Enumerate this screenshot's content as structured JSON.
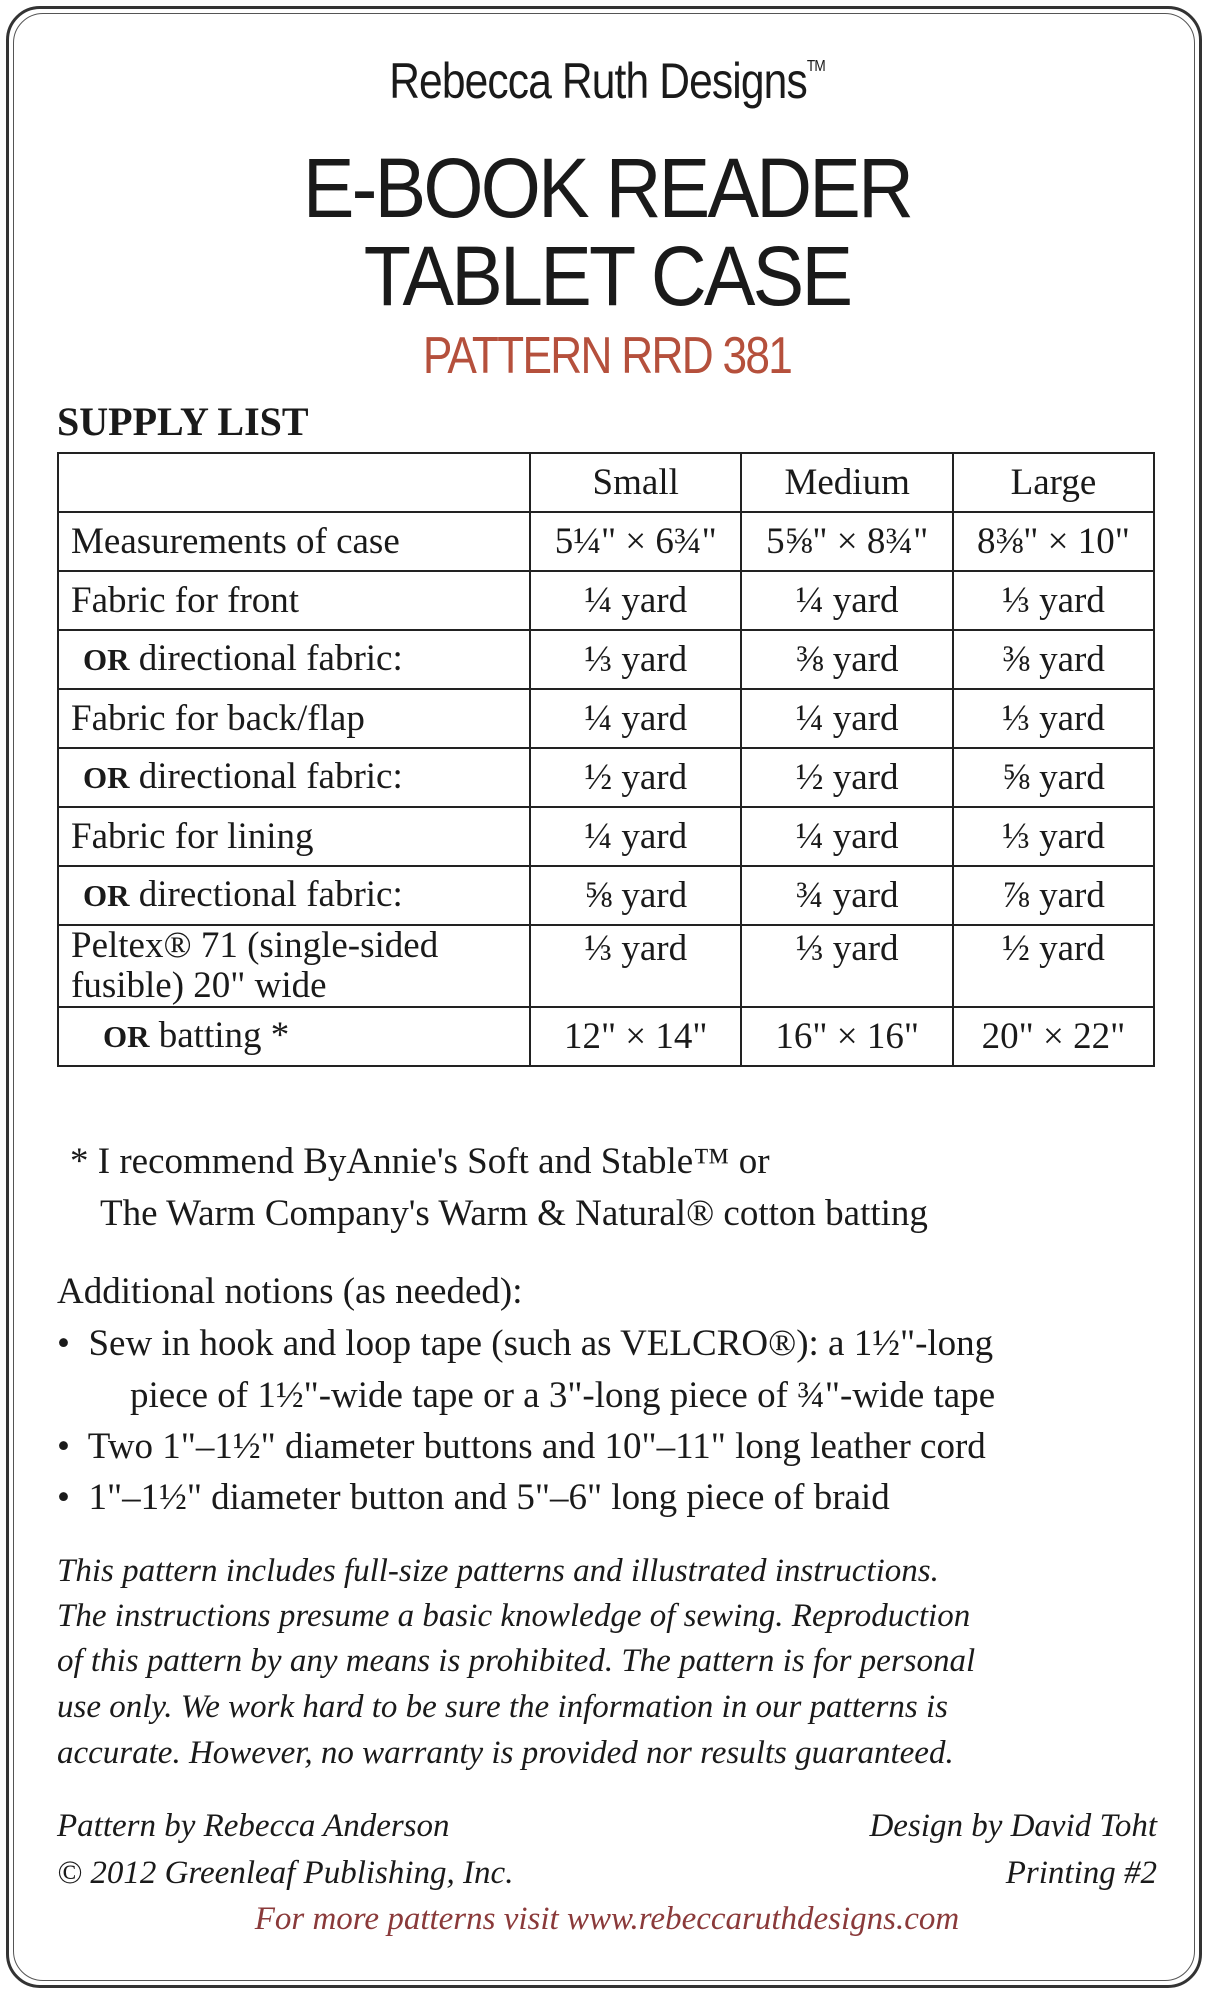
{
  "brand": {
    "name": "Rebecca Ruth Designs",
    "tm": "TM"
  },
  "title": {
    "line1": "E-BOOK READER",
    "line2": "TABLET CASE",
    "pattern": "PATTERN RRD 381"
  },
  "supply": {
    "heading": "SUPPLY LIST",
    "columns": [
      "",
      "Small",
      "Medium",
      "Large"
    ],
    "rows": [
      {
        "or": "",
        "label": "Measurements of case",
        "values": [
          "5¼\" × 6¾\"",
          "5⅝\" × 8¾\"",
          "8⅜\" × 10\""
        ]
      },
      {
        "or": "",
        "label": "Fabric for front",
        "values": [
          "¼ yard",
          "¼ yard",
          "⅓ yard"
        ]
      },
      {
        "or": "OR",
        "label": " directional fabric:",
        "values": [
          "⅓ yard",
          "⅜ yard",
          "⅜ yard"
        ]
      },
      {
        "or": "",
        "label": "Fabric for back/flap",
        "values": [
          "¼ yard",
          "¼ yard",
          "⅓ yard"
        ]
      },
      {
        "or": "OR",
        "label": " directional fabric:",
        "values": [
          "½ yard",
          "½ yard",
          "⅝ yard"
        ]
      },
      {
        "or": "",
        "label": "Fabric for lining",
        "values": [
          "¼ yard",
          "¼ yard",
          "⅓ yard"
        ]
      },
      {
        "or": "OR",
        "label": " directional fabric:",
        "values": [
          "⅝ yard",
          "¾ yard",
          "⅞ yard"
        ]
      },
      {
        "or": "",
        "label": "Peltex® 71 (single-sided fusible) 20\" wide",
        "values": [
          "⅓ yard",
          "⅓ yard",
          "½ yard"
        ]
      },
      {
        "or": "OR",
        "label": " batting *",
        "values": [
          "12\" × 14\"",
          "16\" × 16\"",
          "20\" × 22\""
        ]
      }
    ]
  },
  "footnote": {
    "line1": "* I recommend ByAnnie's Soft and Stable™  or",
    "line2": "The Warm Company's Warm & Natural® cotton batting"
  },
  "notions": {
    "heading": "Additional notions (as needed):",
    "items": [
      {
        "line1": "Sew in hook and loop tape (such as VELCRO®): a 1½\"-long",
        "line2": "piece of 1½\"-wide tape or a 3\"-long piece of ¾\"-wide tape"
      },
      {
        "line1": "Two 1\"–1½\" diameter buttons and 10\"–11\" long leather cord"
      },
      {
        "line1": "1\"–1½\" diameter button and 5\"–6\" long piece of braid"
      }
    ]
  },
  "disclaimer": [
    "This pattern includes full-size patterns and illustrated instructions.",
    "The instructions presume a basic knowledge of sewing. Reproduction",
    "of this pattern by any means is prohibited. The pattern is for personal",
    "use only. We work hard to be sure the information in our patterns is",
    "accurate. However, no warranty is provided nor results guaranteed."
  ],
  "credits": {
    "pattern_by": "Pattern by Rebecca Anderson",
    "copyright": "© 2012 Greenleaf Publishing, Inc.",
    "design_by": "Design by David Toht",
    "printing": "Printing #2",
    "more": "For more patterns visit www.rebeccaruthdesigns.com"
  },
  "colors": {
    "accent": "#b5503c",
    "link": "#8a3a3a"
  }
}
